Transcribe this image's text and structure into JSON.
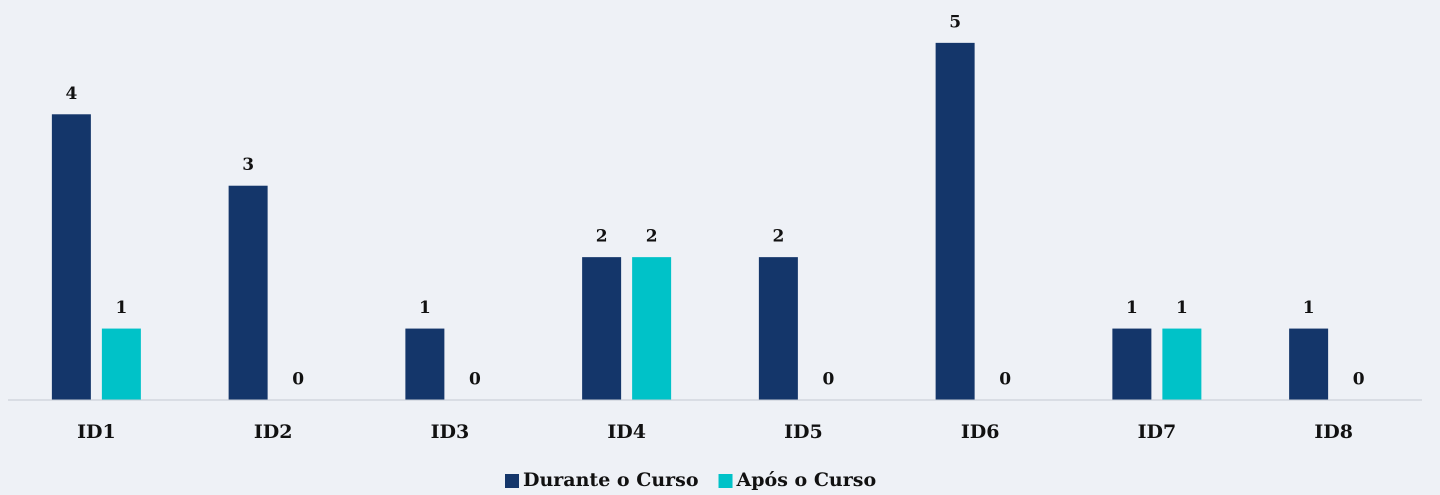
{
  "chart_data": {
    "type": "bar",
    "categories": [
      "ID1",
      "ID2",
      "ID3",
      "ID4",
      "ID5",
      "ID6",
      "ID7",
      "ID8"
    ],
    "series": [
      {
        "name": "Durante o Curso",
        "color": "#14366a",
        "values": [
          4,
          3,
          1,
          2,
          2,
          5,
          1,
          1
        ]
      },
      {
        "name": "Após o Curso",
        "color": "#00c2c8",
        "values": [
          1,
          0,
          0,
          2,
          0,
          0,
          1,
          0
        ]
      }
    ],
    "ylim": [
      0,
      5.6
    ],
    "legend": "bottom"
  }
}
